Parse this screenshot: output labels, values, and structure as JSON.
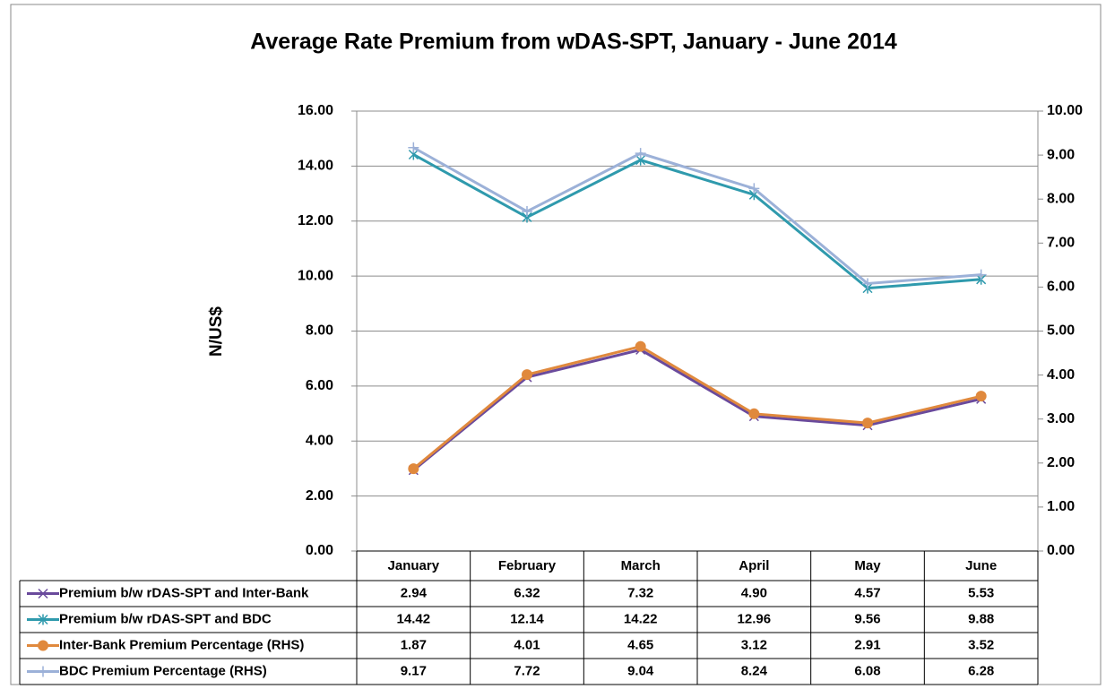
{
  "chart_data": {
    "type": "line",
    "title": "Average Rate  Premium  from wDAS-SPT,  January - June 2014",
    "y_label": "N/US$",
    "categories": [
      "January",
      "February",
      "March",
      "April",
      "May",
      "June"
    ],
    "ylim": [
      0,
      16
    ],
    "yticks": [
      {
        "value": 0,
        "label": "0.00"
      },
      {
        "value": 2,
        "label": "2.00"
      },
      {
        "value": 4,
        "label": "4.00"
      },
      {
        "value": 6,
        "label": "6.00"
      },
      {
        "value": 8,
        "label": "8.00"
      },
      {
        "value": 10,
        "label": "10.00"
      },
      {
        "value": 12,
        "label": "12.00"
      },
      {
        "value": 14,
        "label": "14.00"
      },
      {
        "value": 16,
        "label": "16.00"
      }
    ],
    "y2lim": [
      0,
      10
    ],
    "y2ticks": [
      {
        "value": 0,
        "label": "0.00"
      },
      {
        "value": 1,
        "label": "1.00"
      },
      {
        "value": 2,
        "label": "2.00"
      },
      {
        "value": 3,
        "label": "3.00"
      },
      {
        "value": 4,
        "label": "4.00"
      },
      {
        "value": 5,
        "label": "5.00"
      },
      {
        "value": 6,
        "label": "6.00"
      },
      {
        "value": 7,
        "label": "7.00"
      },
      {
        "value": 8,
        "label": "8.00"
      },
      {
        "value": 9,
        "label": "9.00"
      },
      {
        "value": 10,
        "label": "10.00"
      }
    ],
    "grid": true,
    "series": [
      {
        "name": "Premium b/w rDAS-SPT and Inter-Bank",
        "color": "#6a4a9c",
        "marker": "x",
        "values": [
          2.94,
          6.32,
          7.32,
          4.9,
          4.57,
          5.53
        ],
        "value_labels": [
          "2.94",
          "6.32",
          "7.32",
          "4.90",
          "4.57",
          "5.53"
        ]
      },
      {
        "name": "Premium b/w rDAS-SPT and BDC",
        "color": "#2f9aad",
        "marker": "star",
        "values": [
          14.42,
          12.14,
          14.22,
          12.96,
          9.56,
          9.88
        ],
        "value_labels": [
          "14.42",
          "12.14",
          "14.22",
          "12.96",
          "9.56",
          "9.88"
        ]
      },
      {
        "name": "Inter-Bank Premium Percentage (RHS)",
        "color": "#e0893d",
        "marker": "circle",
        "axis": "y2",
        "values": [
          1.87,
          4.01,
          4.65,
          3.12,
          2.91,
          3.52
        ],
        "value_labels": [
          "1.87",
          "4.01",
          "4.65",
          "3.12",
          "2.91",
          "3.52"
        ]
      },
      {
        "name": "BDC Premium Percentage (RHS)",
        "color": "#9cb1d8",
        "marker": "plus",
        "axis": "y2",
        "values": [
          9.17,
          7.72,
          9.04,
          8.24,
          6.08,
          6.28
        ],
        "value_labels": [
          "9.17",
          "7.72",
          "9.04",
          "8.24",
          "6.08",
          "6.28"
        ]
      }
    ]
  }
}
